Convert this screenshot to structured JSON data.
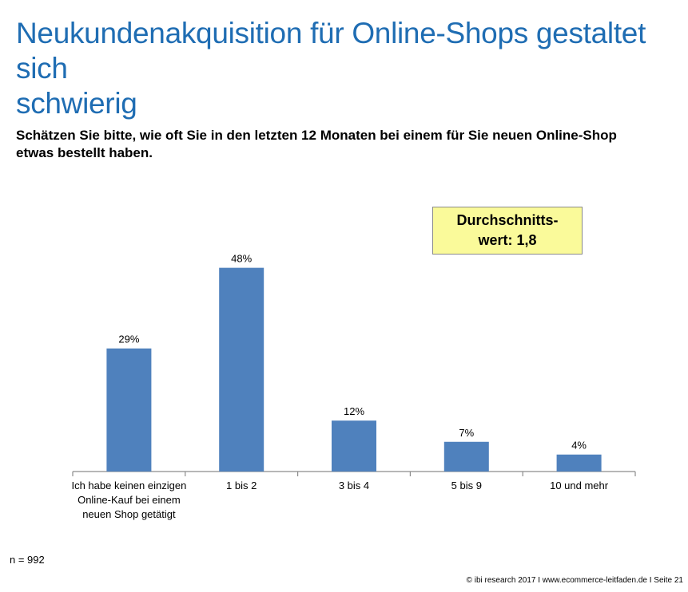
{
  "page": {
    "title": "Neukundenakquisition für Online-Shops gestaltet sich schwierig",
    "question": "Schätzen Sie bitte, wie oft Sie in den letzten 12 Monaten bei einem für Sie neuen Online-Shop etwas bestellt haben.",
    "average_box": "Durchschnitts-wert: 1,8",
    "sample_size": "n = 992",
    "footer": "© ibi research 2017 I www.ecommerce-leitfaden.de I Seite 21"
  },
  "chart_data": {
    "type": "bar",
    "categories": [
      "Ich habe keinen einzigen Online-Kauf bei einem neuen Shop getätigt",
      "1 bis 2",
      "3 bis 4",
      "5 bis 9",
      "10 und mehr"
    ],
    "values": [
      29,
      48,
      12,
      7,
      4
    ],
    "value_labels": [
      "29%",
      "48%",
      "12%",
      "7%",
      "4%"
    ],
    "ylim": [
      0,
      50
    ],
    "grid": false,
    "bar_color": "#4f81bd"
  },
  "colors": {
    "title": "#1f6db3",
    "average_box_background": "#fafa9a"
  }
}
